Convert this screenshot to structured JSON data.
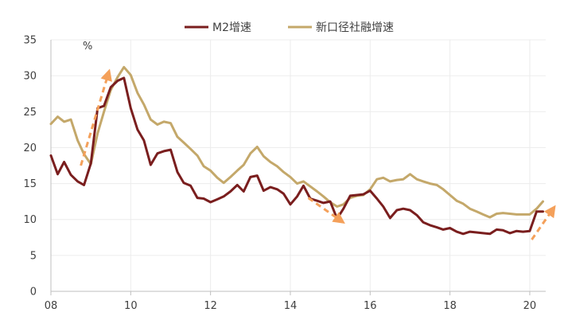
{
  "chart_data": {
    "type": "line",
    "unit_label": "%",
    "ylim": [
      0,
      35
    ],
    "y_ticks": [
      0,
      5,
      10,
      15,
      20,
      25,
      30,
      35
    ],
    "xlim": [
      2008,
      2020.4
    ],
    "x_ticks": [
      {
        "value": 2008,
        "label": "08"
      },
      {
        "value": 2010,
        "label": "10"
      },
      {
        "value": 2012,
        "label": "12"
      },
      {
        "value": 2014,
        "label": "14"
      },
      {
        "value": 2016,
        "label": "16"
      },
      {
        "value": 2018,
        "label": "18"
      },
      {
        "value": 2020,
        "label": "20"
      }
    ],
    "grid": true,
    "legend": "top-center",
    "series": [
      {
        "name": "M2增速",
        "color": "#7a1e1e",
        "points": [
          [
            2008.0,
            18.9
          ],
          [
            2008.17,
            16.3
          ],
          [
            2008.33,
            18.0
          ],
          [
            2008.5,
            16.2
          ],
          [
            2008.67,
            15.3
          ],
          [
            2008.83,
            14.8
          ],
          [
            2009.0,
            17.8
          ],
          [
            2009.17,
            25.5
          ],
          [
            2009.33,
            25.8
          ],
          [
            2009.5,
            28.4
          ],
          [
            2009.67,
            29.3
          ],
          [
            2009.83,
            29.7
          ],
          [
            2010.0,
            25.5
          ],
          [
            2010.17,
            22.5
          ],
          [
            2010.33,
            21.0
          ],
          [
            2010.5,
            17.6
          ],
          [
            2010.67,
            19.2
          ],
          [
            2010.83,
            19.5
          ],
          [
            2011.0,
            19.7
          ],
          [
            2011.17,
            16.6
          ],
          [
            2011.33,
            15.1
          ],
          [
            2011.5,
            14.7
          ],
          [
            2011.67,
            13.0
          ],
          [
            2011.83,
            12.9
          ],
          [
            2012.0,
            12.4
          ],
          [
            2012.17,
            12.8
          ],
          [
            2012.33,
            13.2
          ],
          [
            2012.5,
            13.9
          ],
          [
            2012.67,
            14.8
          ],
          [
            2012.83,
            13.9
          ],
          [
            2013.0,
            15.9
          ],
          [
            2013.17,
            16.1
          ],
          [
            2013.33,
            14.0
          ],
          [
            2013.5,
            14.5
          ],
          [
            2013.67,
            14.2
          ],
          [
            2013.83,
            13.6
          ],
          [
            2014.0,
            12.1
          ],
          [
            2014.17,
            13.2
          ],
          [
            2014.33,
            14.7
          ],
          [
            2014.5,
            12.9
          ],
          [
            2014.67,
            12.6
          ],
          [
            2014.83,
            12.3
          ],
          [
            2015.0,
            12.5
          ],
          [
            2015.17,
            10.1
          ],
          [
            2015.33,
            11.5
          ],
          [
            2015.5,
            13.3
          ],
          [
            2015.67,
            13.4
          ],
          [
            2015.83,
            13.5
          ],
          [
            2016.0,
            14.0
          ],
          [
            2016.17,
            12.9
          ],
          [
            2016.33,
            11.8
          ],
          [
            2016.5,
            10.2
          ],
          [
            2016.67,
            11.3
          ],
          [
            2016.83,
            11.5
          ],
          [
            2017.0,
            11.3
          ],
          [
            2017.17,
            10.6
          ],
          [
            2017.33,
            9.6
          ],
          [
            2017.5,
            9.2
          ],
          [
            2017.67,
            8.9
          ],
          [
            2017.83,
            8.6
          ],
          [
            2018.0,
            8.8
          ],
          [
            2018.17,
            8.3
          ],
          [
            2018.33,
            8.0
          ],
          [
            2018.5,
            8.3
          ],
          [
            2018.67,
            8.2
          ],
          [
            2018.83,
            8.1
          ],
          [
            2019.0,
            8.0
          ],
          [
            2019.17,
            8.6
          ],
          [
            2019.33,
            8.5
          ],
          [
            2019.5,
            8.1
          ],
          [
            2019.67,
            8.4
          ],
          [
            2019.83,
            8.3
          ],
          [
            2020.0,
            8.4
          ],
          [
            2020.17,
            11.1
          ],
          [
            2020.33,
            11.1
          ]
        ]
      },
      {
        "name": "新口径社融增速",
        "color": "#c4a86a",
        "points": [
          [
            2008.0,
            23.3
          ],
          [
            2008.17,
            24.3
          ],
          [
            2008.33,
            23.6
          ],
          [
            2008.5,
            23.9
          ],
          [
            2008.67,
            21.0
          ],
          [
            2008.83,
            19.1
          ],
          [
            2009.0,
            17.7
          ],
          [
            2009.17,
            22.0
          ],
          [
            2009.33,
            25.0
          ],
          [
            2009.5,
            28.0
          ],
          [
            2009.67,
            29.8
          ],
          [
            2009.83,
            31.2
          ],
          [
            2010.0,
            30.1
          ],
          [
            2010.17,
            27.6
          ],
          [
            2010.33,
            26.0
          ],
          [
            2010.5,
            23.9
          ],
          [
            2010.67,
            23.2
          ],
          [
            2010.83,
            23.6
          ],
          [
            2011.0,
            23.4
          ],
          [
            2011.17,
            21.5
          ],
          [
            2011.33,
            20.7
          ],
          [
            2011.5,
            19.8
          ],
          [
            2011.67,
            18.9
          ],
          [
            2011.83,
            17.4
          ],
          [
            2012.0,
            16.8
          ],
          [
            2012.17,
            15.8
          ],
          [
            2012.33,
            15.1
          ],
          [
            2012.5,
            15.9
          ],
          [
            2012.67,
            16.8
          ],
          [
            2012.83,
            17.6
          ],
          [
            2013.0,
            19.2
          ],
          [
            2013.17,
            20.1
          ],
          [
            2013.33,
            18.8
          ],
          [
            2013.5,
            18.0
          ],
          [
            2013.67,
            17.4
          ],
          [
            2013.83,
            16.6
          ],
          [
            2014.0,
            15.9
          ],
          [
            2014.17,
            15.0
          ],
          [
            2014.33,
            15.3
          ],
          [
            2014.5,
            14.6
          ],
          [
            2014.67,
            13.9
          ],
          [
            2014.83,
            13.2
          ],
          [
            2015.0,
            12.4
          ],
          [
            2015.17,
            11.8
          ],
          [
            2015.33,
            12.1
          ],
          [
            2015.5,
            13.0
          ],
          [
            2015.67,
            13.3
          ],
          [
            2015.83,
            13.4
          ],
          [
            2016.0,
            14.2
          ],
          [
            2016.17,
            15.6
          ],
          [
            2016.33,
            15.8
          ],
          [
            2016.5,
            15.3
          ],
          [
            2016.67,
            15.5
          ],
          [
            2016.83,
            15.6
          ],
          [
            2017.0,
            16.3
          ],
          [
            2017.17,
            15.6
          ],
          [
            2017.33,
            15.3
          ],
          [
            2017.5,
            15.0
          ],
          [
            2017.67,
            14.8
          ],
          [
            2017.83,
            14.2
          ],
          [
            2018.0,
            13.4
          ],
          [
            2018.17,
            12.6
          ],
          [
            2018.33,
            12.2
          ],
          [
            2018.5,
            11.5
          ],
          [
            2018.67,
            11.1
          ],
          [
            2018.83,
            10.7
          ],
          [
            2019.0,
            10.3
          ],
          [
            2019.17,
            10.8
          ],
          [
            2019.33,
            10.9
          ],
          [
            2019.5,
            10.8
          ],
          [
            2019.67,
            10.7
          ],
          [
            2019.83,
            10.7
          ],
          [
            2020.0,
            10.7
          ],
          [
            2020.17,
            11.5
          ],
          [
            2020.33,
            12.5
          ]
        ]
      }
    ],
    "annotations": {
      "arrow_color": "#f4a05a",
      "arrows": [
        {
          "from": [
            2008.75,
            17.5
          ],
          "to": [
            2009.45,
            30.5
          ]
        },
        {
          "from": [
            2014.45,
            13.0
          ],
          "to": [
            2015.3,
            9.7
          ]
        },
        {
          "from": [
            2020.05,
            7.2
          ],
          "to": [
            2020.6,
            11.6
          ]
        }
      ]
    }
  }
}
